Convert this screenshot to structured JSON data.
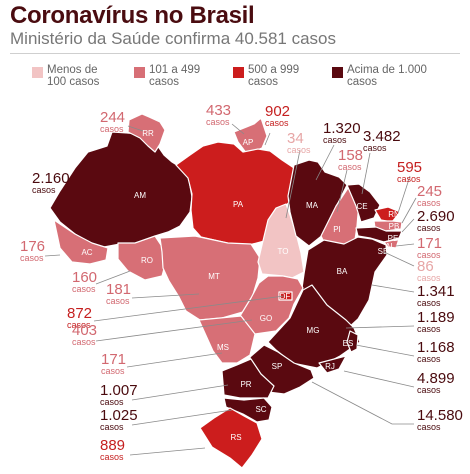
{
  "header": {
    "title": "Coronavírus no Brasil",
    "subtitle": "Ministério da Saúde confirma 40.581 casos"
  },
  "legend": [
    {
      "label": "Menos de\n100 casos",
      "color": "#f2c4c4"
    },
    {
      "label": "101 a 499\ncasos",
      "color": "#d76f76"
    },
    {
      "label": "500 a 999\ncasos",
      "color": "#cc1d1d"
    },
    {
      "label": "Acima de 1.000\ncasos",
      "color": "#5a0910"
    }
  ],
  "unit_label": "casos",
  "states": [
    {
      "uf": "RR",
      "cases": "244",
      "cat": 1
    },
    {
      "uf": "AP",
      "cases": "433",
      "cat": 1
    },
    {
      "uf": "PA",
      "cases": "902",
      "cat": 2
    },
    {
      "uf": "AM",
      "cases": "2.160",
      "cat": 3
    },
    {
      "uf": "AC",
      "cases": "176",
      "cat": 1
    },
    {
      "uf": "RO",
      "cases": "160",
      "cat": 1
    },
    {
      "uf": "TO",
      "cases": "34",
      "cat": 0
    },
    {
      "uf": "MA",
      "cases": "1.320",
      "cat": 3
    },
    {
      "uf": "PI",
      "cases": "158",
      "cat": 1
    },
    {
      "uf": "CE",
      "cases": "3.482",
      "cat": 3
    },
    {
      "uf": "RN",
      "cases": "595",
      "cat": 2
    },
    {
      "uf": "PB",
      "cases": "245",
      "cat": 1
    },
    {
      "uf": "PE",
      "cases": "2.690",
      "cat": 3
    },
    {
      "uf": "AL",
      "cases": "171",
      "cat": 1
    },
    {
      "uf": "SE",
      "cases": "86",
      "cat": 0
    },
    {
      "uf": "BA",
      "cases": "1.341",
      "cat": 3
    },
    {
      "uf": "MT",
      "cases": "181",
      "cat": 1
    },
    {
      "uf": "DF",
      "cases": "872",
      "cat": 2
    },
    {
      "uf": "GO",
      "cases": "403",
      "cat": 1
    },
    {
      "uf": "MS",
      "cases": "171",
      "cat": 1
    },
    {
      "uf": "MG",
      "cases": "1.189",
      "cat": 3
    },
    {
      "uf": "ES",
      "cases": "1.168",
      "cat": 3
    },
    {
      "uf": "RJ",
      "cases": "4.899",
      "cat": 3
    },
    {
      "uf": "SP",
      "cases": "14.580",
      "cat": 3
    },
    {
      "uf": "PR",
      "cases": "1.007",
      "cat": 3
    },
    {
      "uf": "SC",
      "cases": "1.025",
      "cat": 3
    },
    {
      "uf": "RS",
      "cases": "889",
      "cat": 2
    }
  ]
}
